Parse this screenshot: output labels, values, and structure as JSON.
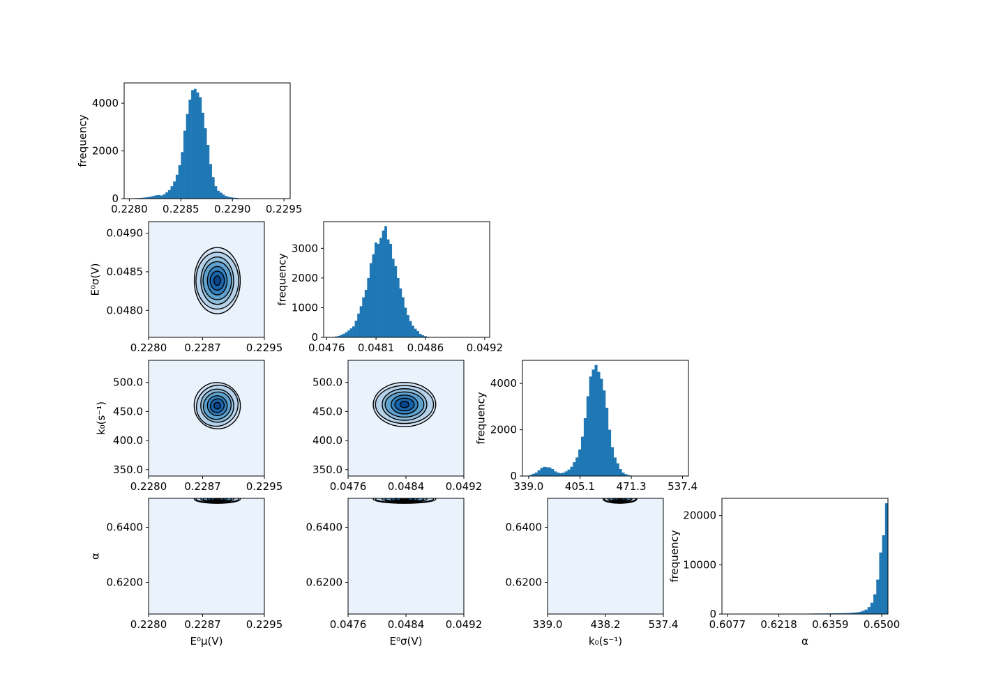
{
  "chart_data": [
    {
      "id": "hist-e0mu",
      "type": "bar",
      "row": 0,
      "col": 0,
      "ylabel": "frequency",
      "xlim": [
        0.22795,
        0.22956
      ],
      "ylim": [
        0,
        4850
      ],
      "xticks": [
        0.228,
        0.2285,
        0.229,
        0.2295
      ],
      "xtick_labels": [
        "0.2280",
        "0.2285",
        "0.2290",
        "0.2295"
      ],
      "yticks": [
        0,
        2000,
        4000
      ],
      "ytick_labels": [
        "0",
        "2000",
        "4000"
      ],
      "bin_start": 0.228,
      "bin_width": 2.5e-05,
      "values": [
        10,
        15,
        20,
        25,
        30,
        40,
        55,
        70,
        90,
        120,
        140,
        150,
        130,
        180,
        260,
        360,
        520,
        720,
        1000,
        1400,
        1950,
        2850,
        3550,
        4150,
        4550,
        4600,
        4450,
        4250,
        3600,
        2950,
        2250,
        1450,
        900,
        520,
        330,
        250,
        170,
        110,
        75,
        55,
        40,
        30,
        20,
        15,
        10
      ]
    },
    {
      "id": "hist-e0sigma",
      "type": "bar",
      "row": 1,
      "col": 1,
      "ylabel": "frequency",
      "xlim": [
        0.04757,
        0.04925
      ],
      "ylim": [
        0,
        3900
      ],
      "xticks": [
        0.0476,
        0.0481,
        0.0486,
        0.0492
      ],
      "xtick_labels": [
        "0.0476",
        "0.0481",
        "0.0486",
        "0.0492"
      ],
      "yticks": [
        0,
        1000,
        2000,
        3000
      ],
      "ytick_labels": [
        "0",
        "1000",
        "2000",
        "3000"
      ],
      "bin_start": 0.04766,
      "bin_width": 2.5e-05,
      "values": [
        15,
        30,
        50,
        80,
        120,
        170,
        230,
        300,
        370,
        560,
        800,
        1050,
        1350,
        1600,
        2000,
        2500,
        2800,
        3200,
        3150,
        3350,
        3600,
        3750,
        3300,
        3150,
        2650,
        2400,
        2000,
        1650,
        1350,
        1000,
        750,
        550,
        390,
        290,
        210,
        120,
        70,
        40,
        20,
        10
      ]
    },
    {
      "id": "hist-k0",
      "type": "bar",
      "row": 2,
      "col": 2,
      "ylabel": "frequency",
      "xlim": [
        331,
        545
      ],
      "ylim": [
        0,
        5000
      ],
      "xticks": [
        339.0,
        405.1,
        471.3,
        537.4
      ],
      "xtick_labels": [
        "339.0",
        "405.1",
        "471.3",
        "537.4"
      ],
      "yticks": [
        0,
        2000,
        4000
      ],
      "ytick_labels": [
        "0",
        "2000",
        "4000"
      ],
      "bin_start": 340,
      "bin_width": 3.5,
      "values": [
        50,
        100,
        150,
        250,
        350,
        400,
        380,
        370,
        300,
        200,
        150,
        120,
        140,
        200,
        280,
        400,
        600,
        800,
        1150,
        1700,
        2500,
        3450,
        4300,
        4600,
        4800,
        4500,
        4200,
        3700,
        2950,
        2000,
        1250,
        800,
        550,
        300,
        150,
        80,
        40,
        20,
        10,
        5
      ]
    },
    {
      "id": "hist-alpha",
      "type": "bar",
      "row": 3,
      "col": 3,
      "ylabel": "frequency",
      "xlabel": "α",
      "xlim": [
        0.6062,
        0.6517
      ],
      "ylim": [
        0,
        23500
      ],
      "xticks": [
        0.6077,
        0.6218,
        0.6359,
        0.65
      ],
      "xtick_labels": [
        "0.6077",
        "0.6218",
        "0.6359",
        "0.6500"
      ],
      "yticks": [
        0,
        10000,
        20000
      ],
      "ytick_labels": [
        "0",
        "10000",
        "20000"
      ],
      "bin_start": 0.6077,
      "bin_width": 0.0008,
      "values": [
        2,
        2,
        2,
        2,
        3,
        3,
        3,
        3,
        4,
        4,
        4,
        5,
        5,
        6,
        6,
        7,
        8,
        9,
        10,
        12,
        14,
        16,
        18,
        20,
        25,
        30,
        40,
        60,
        90,
        100,
        110,
        110,
        115,
        120,
        130,
        140,
        150,
        160,
        170,
        180,
        190,
        210,
        240,
        300,
        350,
        450,
        650,
        900,
        1400,
        2300,
        4000,
        7000,
        12500,
        16000,
        22500
      ]
    },
    {
      "id": "kde-e0mu-e0sigma",
      "type": "contour",
      "row": 1,
      "col": 0,
      "ylabel": "E⁰σ(V)",
      "xlim": [
        0.228,
        0.2295
      ],
      "ylim": [
        0.04765,
        0.04915
      ],
      "xticks": [
        0.228,
        0.2287,
        0.2295
      ],
      "xtick_labels": [
        "0.2280",
        "0.2287",
        "0.2295"
      ],
      "yticks": [
        0.048,
        0.0485,
        0.049
      ],
      "ytick_labels": [
        "0.0480",
        "0.0485",
        "0.0490"
      ],
      "center": [
        0.22889,
        0.048385
      ],
      "spread": [
        0.00031,
        0.00043
      ]
    },
    {
      "id": "kde-e0mu-k0",
      "type": "contour",
      "row": 2,
      "col": 0,
      "ylabel": "k₀(s⁻¹)",
      "xlim": [
        0.228,
        0.2295
      ],
      "ylim": [
        339,
        538
      ],
      "xticks": [
        0.228,
        0.2287,
        0.2295
      ],
      "xtick_labels": [
        "0.2280",
        "0.2287",
        "0.2295"
      ],
      "yticks": [
        350,
        400,
        450,
        500
      ],
      "ytick_labels": [
        "350.0",
        "400.0",
        "450.0",
        "500.0"
      ],
      "center": [
        0.22889,
        460
      ],
      "spread": [
        0.00031,
        40
      ],
      "tilt_deg": -40
    },
    {
      "id": "kde-e0sigma-k0",
      "type": "contour",
      "row": 2,
      "col": 1,
      "xlim": [
        0.0476,
        0.0492
      ],
      "ylim": [
        339,
        538
      ],
      "xticks": [
        0.0476,
        0.0484,
        0.0492
      ],
      "xtick_labels": [
        "0.0476",
        "0.0484",
        "0.0492"
      ],
      "yticks": [
        350,
        400,
        450,
        500
      ],
      "ytick_labels": [
        "350.0",
        "400.0",
        "450.0",
        "500.0"
      ],
      "center": [
        0.04838,
        462
      ],
      "spread": [
        0.00045,
        38
      ]
    },
    {
      "id": "kde-e0mu-alpha",
      "type": "contour",
      "row": 3,
      "col": 0,
      "ylabel": "α",
      "xlabel": "E⁰μ(V)",
      "xlim": [
        0.228,
        0.2295
      ],
      "ylim": [
        0.6085,
        0.6505
      ],
      "xticks": [
        0.228,
        0.2287,
        0.2295
      ],
      "xtick_labels": [
        "0.2280",
        "0.2287",
        "0.2295"
      ],
      "yticks": [
        0.62,
        0.64
      ],
      "ytick_labels": [
        "0.6200",
        "0.6400"
      ],
      "center": [
        0.22889,
        0.6502
      ],
      "spread": [
        0.00031,
        0.0015
      ],
      "clip_top": true
    },
    {
      "id": "kde-e0sigma-alpha",
      "type": "contour",
      "row": 3,
      "col": 1,
      "xlabel": "E⁰σ(V)",
      "xlim": [
        0.0476,
        0.0492
      ],
      "ylim": [
        0.6085,
        0.6505
      ],
      "xticks": [
        0.0476,
        0.0484,
        0.0492
      ],
      "xtick_labels": [
        "0.0476",
        "0.0484",
        "0.0492"
      ],
      "yticks": [
        0.62,
        0.64
      ],
      "ytick_labels": [
        "0.6200",
        "0.6400"
      ],
      "center": [
        0.04838,
        0.6502
      ],
      "spread": [
        0.00045,
        0.0015
      ],
      "clip_top": true
    },
    {
      "id": "kde-k0-alpha",
      "type": "contour",
      "row": 3,
      "col": 2,
      "xlabel": "k₀(s⁻¹)",
      "xlim": [
        339,
        537.4
      ],
      "ylim": [
        0.6085,
        0.6505
      ],
      "xticks": [
        339.0,
        438.2,
        537.4
      ],
      "xtick_labels": [
        "339.0",
        "438.2",
        "537.4"
      ],
      "yticks": [
        0.62,
        0.64
      ],
      "ytick_labels": [
        "0.6200",
        "0.6400"
      ],
      "center": [
        463,
        0.6502
      ],
      "spread": [
        30,
        0.0015
      ],
      "clip_top": true
    }
  ],
  "colors": {
    "bar": "#1f77b4",
    "kde_background": "#eaf2fb",
    "kde_levels": [
      "#d3e3f3",
      "#b6d2ea",
      "#8fbedd",
      "#5fa2cf",
      "#3582bf",
      "#1864aa",
      "#08468b"
    ],
    "contour_line": "#000000"
  }
}
